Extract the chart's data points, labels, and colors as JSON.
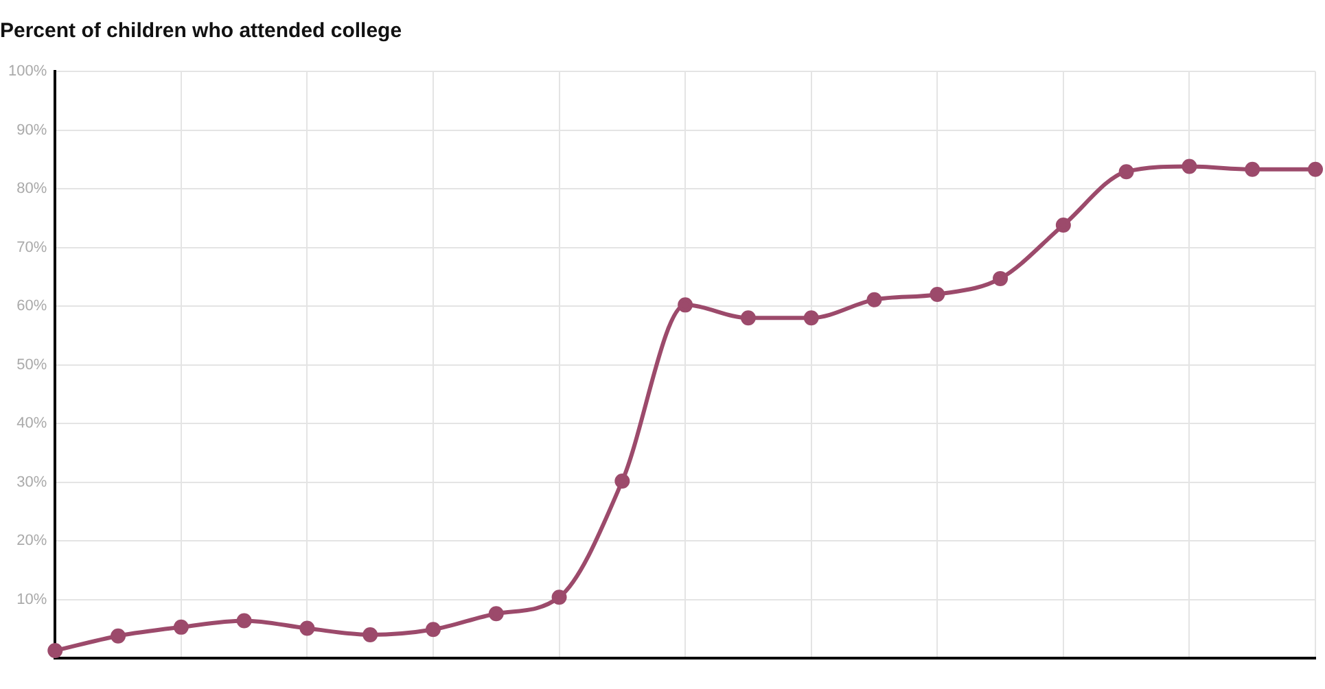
{
  "chart_data": {
    "type": "line",
    "title": "Percent of children who attended college",
    "categories": [
      null,
      null,
      null,
      null,
      null,
      null,
      null,
      null,
      null,
      null,
      null,
      null,
      null,
      null,
      null,
      null,
      null,
      null,
      null,
      null,
      null
    ],
    "series": [
      {
        "color": "#9c4a6b",
        "values": [
          1.3,
          3.8,
          5.3,
          6.4,
          5.1,
          4.0,
          4.9,
          7.6,
          10.4,
          30.2,
          60.2,
          58.0,
          58.0,
          61.1,
          62.0,
          64.7,
          73.8,
          82.9,
          83.8,
          83.3,
          83.3
        ]
      }
    ],
    "ylim": [
      0,
      100
    ],
    "yticks": [
      {
        "value": 0,
        "label": null
      },
      {
        "value": 10,
        "label": "10%"
      },
      {
        "value": 20,
        "label": "20%"
      },
      {
        "value": 30,
        "label": "30%"
      },
      {
        "value": 40,
        "label": "40%"
      },
      {
        "value": 50,
        "label": "50%"
      },
      {
        "value": 60,
        "label": "60%"
      },
      {
        "value": 70,
        "label": "70%"
      },
      {
        "value": 80,
        "label": "80%"
      },
      {
        "value": 90,
        "label": "90%"
      },
      {
        "value": 100,
        "label": "100%"
      }
    ],
    "grid": true,
    "legend": false,
    "marker": "circle",
    "line_style": "solid"
  }
}
